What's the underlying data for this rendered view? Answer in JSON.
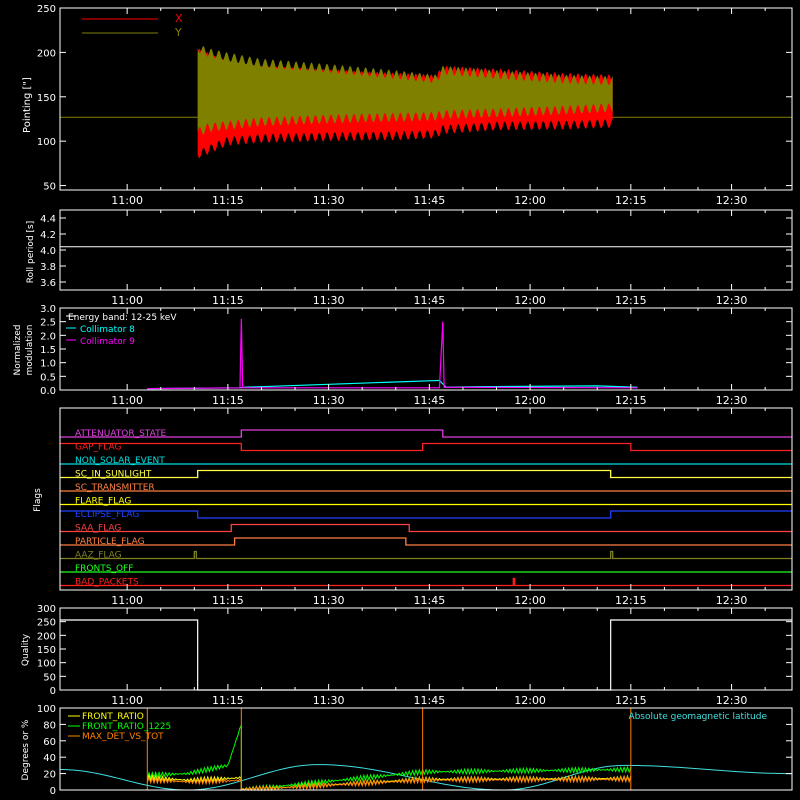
{
  "colors": {
    "background": "#000000",
    "axes": "#ffffff",
    "x_pointing": "#ff0000",
    "y_pointing": "#808000",
    "collimator_8": "#00ffff",
    "collimator_9": "#ff00ff",
    "energy_band": "#ffffff",
    "front_ratio": "#ffff00",
    "front_ratio_1225": "#00ff00",
    "max_det_vs_tot": "#ff8000",
    "geomagnetic_latitude": "#40e0e0"
  },
  "time_ticks": [
    "11:00",
    "11:15",
    "11:30",
    "11:45",
    "12:00",
    "12:15",
    "12:30"
  ],
  "chart_data": [
    {
      "type": "area",
      "name": "pointing",
      "ylabel": "Pointing [\"]",
      "ylim": [
        45,
        250
      ],
      "yticks": [
        "50",
        "100",
        "150",
        "200",
        "250"
      ],
      "legend": [
        "X",
        "Y"
      ],
      "legend_placement": "top-left",
      "x_range_minutes": [
        -10,
        99
      ],
      "baseline": 127,
      "data_start_minute": 10.5,
      "data_end_minute": 72.4,
      "envelope": {
        "x": [
          10.5,
          12,
          15,
          20,
          30,
          40,
          46,
          47,
          55,
          65,
          72.4
        ],
        "X_upper": [
          200,
          195,
          185,
          180,
          176,
          172,
          170,
          180,
          177,
          172,
          170
        ],
        "X_lower": [
          85,
          90,
          100,
          103,
          105,
          106,
          108,
          113,
          117,
          118,
          120
        ],
        "Y_upper": [
          205,
          200,
          195,
          188,
          182,
          175,
          170,
          180,
          175,
          170,
          168
        ],
        "Y_lower": [
          110,
          115,
          118,
          122,
          125,
          127,
          128,
          130,
          132,
          135,
          138
        ]
      }
    },
    {
      "type": "line",
      "name": "roll-period",
      "ylabel": "Roll period [s]",
      "ylim": [
        3.5,
        4.5
      ],
      "yticks": [
        "3.6",
        "3.8",
        "4.0",
        "4.2",
        "4.4"
      ],
      "series": [
        {
          "x": [
            -10,
            99
          ],
          "values": [
            4.04,
            4.04
          ]
        }
      ]
    },
    {
      "type": "line",
      "name": "normalized-modulation",
      "ylabel": "Normalized modulation",
      "ylim": [
        0,
        3.0
      ],
      "yticks": [
        "0.0",
        "0.5",
        "1.0",
        "1.5",
        "2.0",
        "2.5",
        "3.0"
      ],
      "legend": [
        "Energy band: 12-25 keV",
        "Collimator 8",
        "Collimator 9"
      ],
      "legend_placement": "top-left",
      "series": [
        {
          "name": "Collimator 8",
          "x": [
            3,
            16.9,
            17.5,
            46.5,
            47.5,
            52,
            70,
            76
          ],
          "values": [
            0.05,
            0.08,
            0.1,
            0.35,
            0.1,
            0.12,
            0.15,
            0.1
          ]
        },
        {
          "name": "Collimator 9",
          "x": [
            3,
            16.8,
            17,
            17.2,
            46.5,
            47,
            47.2,
            76
          ],
          "values": [
            0.05,
            0.08,
            2.6,
            0.08,
            0.08,
            2.5,
            0.1,
            0.08
          ]
        }
      ]
    },
    {
      "type": "table",
      "name": "flags",
      "ylabel": "Flags",
      "flags": [
        {
          "label": "ATTENUATOR_STATE",
          "color": "#e040e0",
          "transitions": [
            [
              -10,
              0
            ],
            [
              17,
              1
            ],
            [
              47,
              0
            ]
          ]
        },
        {
          "label": "GAP_FLAG",
          "color": "#ff2020",
          "transitions": [
            [
              -10,
              1
            ],
            [
              17,
              0
            ],
            [
              44,
              1
            ],
            [
              75,
              0
            ]
          ]
        },
        {
          "label": "NON_SOLAR_EVENT",
          "color": "#00e0e0",
          "transitions": [
            [
              -10,
              0
            ]
          ]
        },
        {
          "label": "SC_IN_SUNLIGHT",
          "color": "#ffff40",
          "transitions": [
            [
              -10,
              0
            ],
            [
              10.5,
              1
            ],
            [
              72,
              0
            ]
          ]
        },
        {
          "label": "SC_TRANSMITTER",
          "color": "#ff8040",
          "transitions": [
            [
              -10,
              0
            ]
          ]
        },
        {
          "label": "FLARE_FLAG",
          "color": "#ffff00",
          "transitions": [
            [
              -10,
              0
            ]
          ]
        },
        {
          "label": "ECLIPSE_FLAG",
          "color": "#2040ff",
          "transitions": [
            [
              -10,
              1
            ],
            [
              10.5,
              0
            ],
            [
              72,
              1
            ]
          ]
        },
        {
          "label": "SAA_FLAG",
          "color": "#ff4040",
          "transitions": [
            [
              -10,
              0
            ],
            [
              15.5,
              1
            ],
            [
              42,
              0
            ]
          ]
        },
        {
          "label": "PARTICLE_FLAG",
          "color": "#ff8040",
          "transitions": [
            [
              -10,
              0
            ],
            [
              16,
              1
            ],
            [
              41.5,
              0
            ]
          ]
        },
        {
          "label": "AAZ_FLAG",
          "color": "#808020",
          "transitions": [
            [
              -10,
              0
            ],
            [
              10,
              1
            ],
            [
              10.3,
              0
            ],
            [
              72,
              1
            ],
            [
              72.3,
              0
            ]
          ]
        },
        {
          "label": "FRONTS_OFF",
          "color": "#20ff20",
          "transitions": [
            [
              -10,
              0
            ]
          ]
        },
        {
          "label": "BAD_PACKETS",
          "color": "#ff2020",
          "transitions": [
            [
              -10,
              0
            ],
            [
              57.5,
              1
            ],
            [
              57.7,
              0
            ]
          ]
        }
      ]
    },
    {
      "type": "line",
      "name": "quality",
      "ylabel": "Quality",
      "ylim": [
        0,
        300
      ],
      "yticks": [
        "0",
        "50",
        "100",
        "150",
        "200",
        "250",
        "300"
      ],
      "series": [
        {
          "x": [
            -10,
            10.5,
            10.5,
            12,
            12,
            72,
            72,
            99
          ],
          "values": [
            256,
            256,
            0,
            0,
            0,
            0,
            256,
            256
          ]
        }
      ]
    },
    {
      "type": "line",
      "name": "geomagnetic",
      "ylabel": "Degrees or %",
      "ylim": [
        0,
        100
      ],
      "yticks": [
        "0",
        "20",
        "40",
        "60",
        "80",
        "100"
      ],
      "legend": [
        "FRONT_RATIO",
        "FRONT_RATIO_1225",
        "MAX_DET_VS_TOT"
      ],
      "legend_placement": "top-left",
      "annotation": "Absolute geomagnetic latitude",
      "series": [
        {
          "name": "Absolute geomagnetic latitude",
          "x": [
            -10,
            9,
            28.5,
            56,
            74,
            99
          ],
          "values": [
            25,
            0,
            31,
            0,
            30,
            20
          ]
        },
        {
          "name": "FRONT_RATIO_1225",
          "x": [
            3,
            9,
            15,
            17,
            17,
            44,
            75
          ],
          "values": [
            18,
            20,
            30,
            80,
            0,
            22,
            25
          ]
        },
        {
          "name": "FRONT_RATIO",
          "x": [
            3,
            9,
            15,
            17,
            17,
            44,
            75
          ],
          "values": [
            15,
            12,
            14,
            15,
            0,
            13,
            14
          ]
        },
        {
          "name": "MAX_DET_VS_TOT",
          "x": [
            3,
            9,
            15,
            17,
            17,
            44,
            75
          ],
          "values": [
            12,
            10,
            11,
            12,
            0,
            12,
            13
          ]
        }
      ]
    }
  ]
}
